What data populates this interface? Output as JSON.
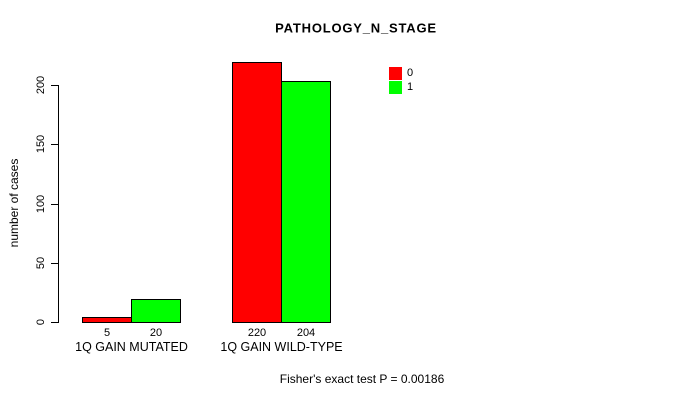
{
  "chart_data": {
    "type": "bar",
    "title": "PATHOLOGY_N_STAGE",
    "ylabel": "number of cases",
    "xlabel": "",
    "ylim": [
      0,
      230
    ],
    "yticks": [
      0,
      50,
      100,
      150,
      200
    ],
    "grid": false,
    "legend_position": "top-right",
    "categories": [
      "1Q GAIN MUTATED",
      "1Q GAIN WILD-TYPE"
    ],
    "series": [
      {
        "name": "0",
        "color": "#ff0000",
        "values": [
          5,
          220
        ]
      },
      {
        "name": "1",
        "color": "#00ff00",
        "values": [
          20,
          204
        ]
      }
    ],
    "bar_value_labels": [
      [
        "5",
        "20"
      ],
      [
        "220",
        "204"
      ]
    ],
    "annotation": "Fisher's exact test P = 0.00186",
    "bar_border_color": "#000000",
    "background_color": "#ffffff"
  }
}
